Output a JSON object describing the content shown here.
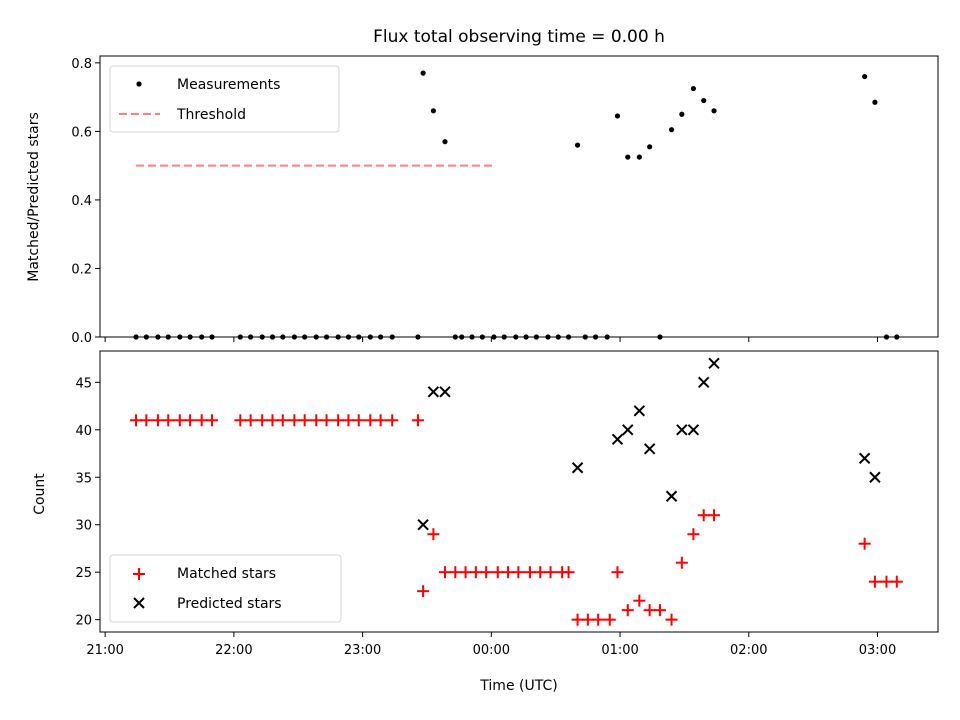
{
  "chart_data": [
    {
      "type": "scatter",
      "title": "Flux total observing time = 0.00 h",
      "ylabel": "Matched/Predicted stars",
      "xlabel": "",
      "xlim_hours": [
        20.96,
        27.47
      ],
      "ylim": [
        0,
        0.82
      ],
      "x_ticks": [
        21,
        22,
        23,
        24,
        25,
        26,
        27
      ],
      "y_ticks": [
        {
          "value": 0.0,
          "label": "0.0"
        },
        {
          "value": 0.2,
          "label": "0.2"
        },
        {
          "value": 0.4,
          "label": "0.4"
        },
        {
          "value": 0.6,
          "label": "0.6"
        },
        {
          "value": 0.8,
          "label": "0.8"
        }
      ],
      "legend": {
        "location": "upper-left",
        "entries": [
          "Measurements",
          "Threshold"
        ]
      },
      "threshold": {
        "name": "Threshold",
        "value": 0.5,
        "x_range": [
          21.24,
          24.03
        ],
        "color": "#ff7f7f",
        "style": "dashed"
      },
      "series": [
        {
          "name": "Measurements",
          "marker": "dot",
          "color": "#000000",
          "points": [
            [
              21.24,
              0
            ],
            [
              21.32,
              0
            ],
            [
              21.41,
              0
            ],
            [
              21.49,
              0
            ],
            [
              21.58,
              0
            ],
            [
              21.66,
              0
            ],
            [
              21.75,
              0
            ],
            [
              21.83,
              0
            ],
            [
              22.05,
              0
            ],
            [
              22.13,
              0
            ],
            [
              22.22,
              0
            ],
            [
              22.3,
              0
            ],
            [
              22.38,
              0
            ],
            [
              22.47,
              0
            ],
            [
              22.55,
              0
            ],
            [
              22.64,
              0
            ],
            [
              22.72,
              0
            ],
            [
              22.81,
              0
            ],
            [
              22.89,
              0
            ],
            [
              22.97,
              0
            ],
            [
              23.06,
              0
            ],
            [
              23.14,
              0
            ],
            [
              23.23,
              0
            ],
            [
              23.43,
              0
            ],
            [
              23.47,
              0.77
            ],
            [
              23.55,
              0.66
            ],
            [
              23.64,
              0.57
            ],
            [
              23.72,
              0
            ],
            [
              23.77,
              0
            ],
            [
              23.85,
              0
            ],
            [
              23.93,
              0
            ],
            [
              24.02,
              0
            ],
            [
              24.1,
              0
            ],
            [
              24.19,
              0
            ],
            [
              24.27,
              0
            ],
            [
              24.35,
              0
            ],
            [
              24.44,
              0
            ],
            [
              24.52,
              0
            ],
            [
              24.6,
              0
            ],
            [
              24.67,
              0.56
            ],
            [
              24.73,
              0
            ],
            [
              24.81,
              0
            ],
            [
              24.9,
              0
            ],
            [
              24.98,
              0.645
            ],
            [
              25.06,
              0.525
            ],
            [
              25.15,
              0.525
            ],
            [
              25.23,
              0.555
            ],
            [
              25.31,
              0
            ],
            [
              25.4,
              0.605
            ],
            [
              25.48,
              0.65
            ],
            [
              25.57,
              0.725
            ],
            [
              25.65,
              0.69
            ],
            [
              25.73,
              0.66
            ],
            [
              26.9,
              0.76
            ],
            [
              26.98,
              0.685
            ],
            [
              27.07,
              0
            ],
            [
              27.15,
              0
            ]
          ]
        }
      ]
    },
    {
      "type": "scatter",
      "title": "",
      "ylabel": "Count",
      "xlabel": "Time (UTC)",
      "xlim_hours": [
        20.96,
        27.47
      ],
      "ylim": [
        18.7,
        48.3
      ],
      "x_ticks": [
        {
          "value": 21,
          "label": "21:00"
        },
        {
          "value": 22,
          "label": "22:00"
        },
        {
          "value": 23,
          "label": "23:00"
        },
        {
          "value": 24,
          "label": "00:00"
        },
        {
          "value": 25,
          "label": "01:00"
        },
        {
          "value": 26,
          "label": "02:00"
        },
        {
          "value": 27,
          "label": "03:00"
        }
      ],
      "y_ticks": [
        {
          "value": 20,
          "label": "20"
        },
        {
          "value": 25,
          "label": "25"
        },
        {
          "value": 30,
          "label": "30"
        },
        {
          "value": 35,
          "label": "35"
        },
        {
          "value": 40,
          "label": "40"
        },
        {
          "value": 45,
          "label": "45"
        }
      ],
      "legend": {
        "location": "lower-left",
        "entries": [
          "Matched stars",
          "Predicted stars"
        ]
      },
      "series": [
        {
          "name": "Matched stars",
          "marker": "plus",
          "color": "#ff0000",
          "points": [
            [
              21.24,
              41
            ],
            [
              21.32,
              41
            ],
            [
              21.41,
              41
            ],
            [
              21.49,
              41
            ],
            [
              21.58,
              41
            ],
            [
              21.66,
              41
            ],
            [
              21.75,
              41
            ],
            [
              21.83,
              41
            ],
            [
              22.05,
              41
            ],
            [
              22.13,
              41
            ],
            [
              22.22,
              41
            ],
            [
              22.3,
              41
            ],
            [
              22.38,
              41
            ],
            [
              22.47,
              41
            ],
            [
              22.55,
              41
            ],
            [
              22.64,
              41
            ],
            [
              22.72,
              41
            ],
            [
              22.81,
              41
            ],
            [
              22.89,
              41
            ],
            [
              22.97,
              41
            ],
            [
              23.06,
              41
            ],
            [
              23.14,
              41
            ],
            [
              23.23,
              41
            ],
            [
              23.43,
              41
            ],
            [
              23.47,
              23
            ],
            [
              23.55,
              29
            ],
            [
              23.64,
              25
            ],
            [
              23.72,
              25
            ],
            [
              23.8,
              25
            ],
            [
              23.88,
              25
            ],
            [
              23.96,
              25
            ],
            [
              24.05,
              25
            ],
            [
              24.13,
              25
            ],
            [
              24.21,
              25
            ],
            [
              24.3,
              25
            ],
            [
              24.38,
              25
            ],
            [
              24.46,
              25
            ],
            [
              24.55,
              25
            ],
            [
              24.6,
              25
            ],
            [
              24.67,
              20
            ],
            [
              24.75,
              20
            ],
            [
              24.83,
              20
            ],
            [
              24.92,
              20
            ],
            [
              24.98,
              25
            ],
            [
              25.06,
              21
            ],
            [
              25.15,
              22
            ],
            [
              25.23,
              21
            ],
            [
              25.31,
              21
            ],
            [
              25.4,
              20
            ],
            [
              25.48,
              26
            ],
            [
              25.57,
              29
            ],
            [
              25.65,
              31
            ],
            [
              25.73,
              31
            ],
            [
              26.9,
              28
            ],
            [
              26.98,
              24
            ],
            [
              27.07,
              24
            ],
            [
              27.15,
              24
            ]
          ]
        },
        {
          "name": "Predicted stars",
          "marker": "x",
          "color": "#000000",
          "points": [
            [
              23.47,
              30
            ],
            [
              23.55,
              44
            ],
            [
              23.64,
              44
            ],
            [
              24.67,
              36
            ],
            [
              24.98,
              39
            ],
            [
              25.06,
              40
            ],
            [
              25.15,
              42
            ],
            [
              25.23,
              38
            ],
            [
              25.4,
              33
            ],
            [
              25.48,
              40
            ],
            [
              25.57,
              40
            ],
            [
              25.65,
              45
            ],
            [
              25.73,
              47
            ],
            [
              26.9,
              37
            ],
            [
              26.98,
              35
            ]
          ]
        }
      ]
    }
  ]
}
